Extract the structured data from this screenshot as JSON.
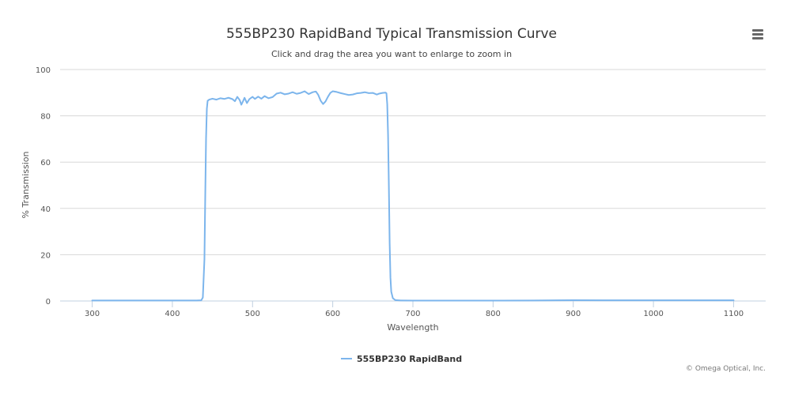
{
  "chart_data": {
    "type": "line",
    "title": "555BP230 RapidBand Typical Transmission Curve",
    "subtitle": "Click and drag the area you want to enlarge to zoom in",
    "xlabel": "Wavelength",
    "ylabel": "% Transmission",
    "xlim": [
      260,
      1140
    ],
    "ylim": [
      0,
      100
    ],
    "x_ticks": [
      300,
      400,
      500,
      600,
      700,
      800,
      900,
      1000,
      1100
    ],
    "y_ticks": [
      0,
      20,
      40,
      60,
      80,
      100
    ],
    "grid": "horizontal",
    "legend_position": "bottom",
    "credits": "© Omega Optical, Inc.",
    "colors": {
      "series": "#7cb5ec",
      "grid": "#d8d8d8",
      "axis": "#c0d0e0"
    },
    "series": [
      {
        "name": "555BP230 RapidBand",
        "points": [
          [
            300,
            0.2
          ],
          [
            350,
            0.2
          ],
          [
            400,
            0.2
          ],
          [
            430,
            0.2
          ],
          [
            436,
            0.3
          ],
          [
            438,
            1.5
          ],
          [
            440,
            18
          ],
          [
            441,
            45
          ],
          [
            442,
            70
          ],
          [
            443,
            83
          ],
          [
            444,
            86.5
          ],
          [
            446,
            87
          ],
          [
            450,
            87.4
          ],
          [
            455,
            87
          ],
          [
            460,
            87.6
          ],
          [
            465,
            87.3
          ],
          [
            470,
            87.8
          ],
          [
            475,
            87.2
          ],
          [
            478,
            86.3
          ],
          [
            481,
            88.2
          ],
          [
            484,
            86.8
          ],
          [
            486,
            84.8
          ],
          [
            488,
            86.2
          ],
          [
            490,
            87.8
          ],
          [
            493,
            85.5
          ],
          [
            496,
            87.2
          ],
          [
            500,
            88.2
          ],
          [
            503,
            87.3
          ],
          [
            507,
            88.3
          ],
          [
            511,
            87.4
          ],
          [
            515,
            88.5
          ],
          [
            520,
            87.6
          ],
          [
            525,
            88.1
          ],
          [
            530,
            89.6
          ],
          [
            535,
            90.0
          ],
          [
            540,
            89.3
          ],
          [
            545,
            89.6
          ],
          [
            550,
            90.2
          ],
          [
            555,
            89.5
          ],
          [
            560,
            89.9
          ],
          [
            565,
            90.6
          ],
          [
            570,
            89.4
          ],
          [
            575,
            90.2
          ],
          [
            579,
            90.5
          ],
          [
            582,
            89.0
          ],
          [
            585,
            86.5
          ],
          [
            588,
            85.1
          ],
          [
            591,
            86.2
          ],
          [
            594,
            88.2
          ],
          [
            597,
            89.9
          ],
          [
            600,
            90.6
          ],
          [
            605,
            90.3
          ],
          [
            610,
            89.8
          ],
          [
            615,
            89.4
          ],
          [
            620,
            89.0
          ],
          [
            625,
            89.2
          ],
          [
            630,
            89.7
          ],
          [
            635,
            89.9
          ],
          [
            640,
            90.2
          ],
          [
            645,
            89.8
          ],
          [
            650,
            89.9
          ],
          [
            655,
            89.2
          ],
          [
            658,
            89.6
          ],
          [
            662,
            89.9
          ],
          [
            666,
            90.0
          ],
          [
            667,
            89.7
          ],
          [
            668,
            85
          ],
          [
            669,
            72
          ],
          [
            670,
            50
          ],
          [
            671,
            25
          ],
          [
            672,
            10
          ],
          [
            673,
            4
          ],
          [
            675,
            1.2
          ],
          [
            678,
            0.4
          ],
          [
            685,
            0.2
          ],
          [
            700,
            0.15
          ],
          [
            750,
            0.15
          ],
          [
            800,
            0.15
          ],
          [
            850,
            0.2
          ],
          [
            880,
            0.3
          ],
          [
            900,
            0.35
          ],
          [
            950,
            0.3
          ],
          [
            1000,
            0.3
          ],
          [
            1050,
            0.3
          ],
          [
            1100,
            0.3
          ]
        ]
      }
    ]
  }
}
